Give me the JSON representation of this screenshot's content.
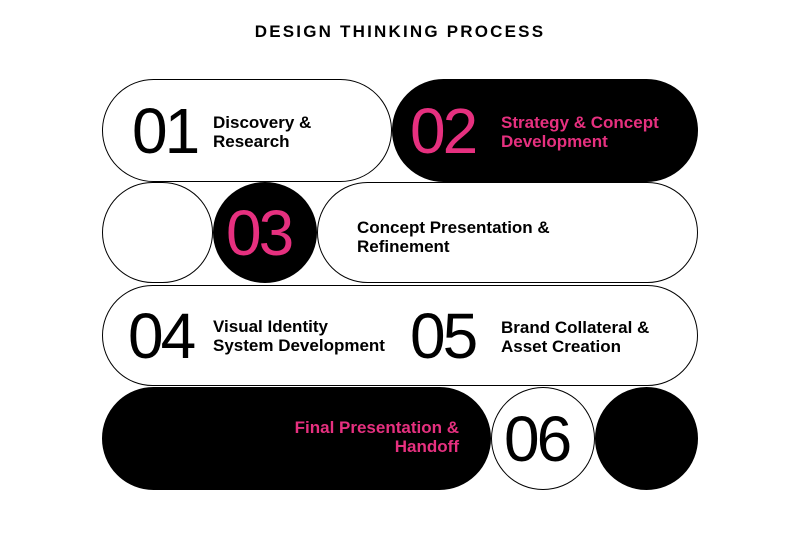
{
  "title": "DESIGN THINKING PROCESS",
  "colors": {
    "accent": "#e6307f",
    "dark": "#000000",
    "light": "#ffffff"
  },
  "steps": [
    {
      "number": "01",
      "label_line1": "Discovery &",
      "label_line2": "Research"
    },
    {
      "number": "02",
      "label_line1": "Strategy & Concept",
      "label_line2": "Development"
    },
    {
      "number": "03",
      "label_line1": "Concept Presentation &",
      "label_line2": "Refinement"
    },
    {
      "number": "04",
      "label_line1": "Visual Identity",
      "label_line2": "System Development"
    },
    {
      "number": "05",
      "label_line1": "Brand Collateral &",
      "label_line2": "Asset Creation"
    },
    {
      "number": "06",
      "label_line1": "Final Presentation &",
      "label_line2": "Handoff"
    }
  ]
}
